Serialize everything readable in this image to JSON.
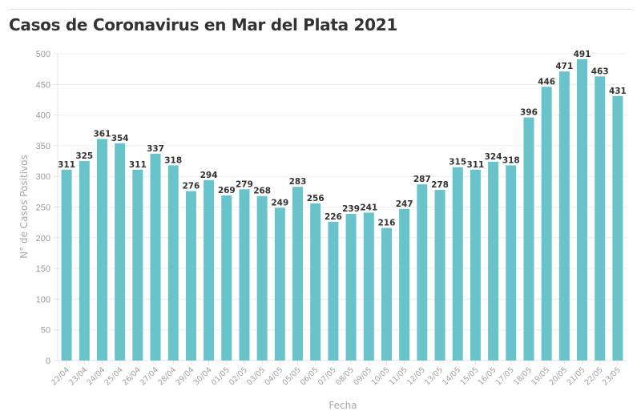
{
  "chart_data": {
    "type": "bar",
    "title": "Casos de Coronavirus en Mar del Plata 2021",
    "xlabel": "Fecha",
    "ylabel": "N° de Casos Positivos",
    "ylim": [
      0,
      500
    ],
    "yticks": [
      0,
      50,
      100,
      150,
      200,
      250,
      300,
      350,
      400,
      450,
      500
    ],
    "grid": true,
    "bar_color": "#68c3cb",
    "categories": [
      "22/04",
      "23/04",
      "24/04",
      "25/04",
      "26/04",
      "27/04",
      "28/04",
      "29/04",
      "30/04",
      "01/05",
      "02/05",
      "03/05",
      "04/05",
      "05/05",
      "06/05",
      "07/05",
      "08/05",
      "09/05",
      "10/05",
      "11/05",
      "12/05",
      "13/05",
      "14/05",
      "15/05",
      "16/05",
      "17/05",
      "18/05",
      "19/05",
      "20/05",
      "21/05",
      "22/05",
      "23/05"
    ],
    "values": [
      311,
      325,
      361,
      354,
      311,
      337,
      318,
      276,
      294,
      269,
      279,
      268,
      249,
      283,
      256,
      226,
      239,
      241,
      216,
      247,
      287,
      278,
      315,
      311,
      324,
      318,
      396,
      446,
      471,
      491,
      463,
      431
    ]
  }
}
